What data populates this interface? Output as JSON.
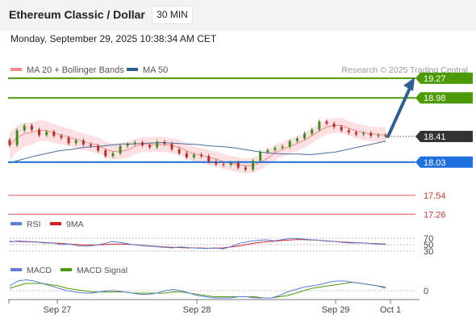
{
  "header": {
    "title": "Ethereum Classic / Dollar",
    "timeframe": "30 MIN",
    "datetime": "Monday, September 29, 2025 10:38:34 AM CET"
  },
  "chart_data": [
    {
      "type": "candlestick",
      "title": "Ethereum Classic / Dollar",
      "legend": [
        {
          "name": "MA 20 + Bollinger Bands",
          "color": "#f28c8c"
        },
        {
          "name": "MA 50",
          "color": "#2f5f96"
        }
      ],
      "credit": "Research © 2025 Trading Central",
      "x_tick_labels": [
        "Sep 27",
        "Sep 28",
        "Sep 29",
        "Oct 1"
      ],
      "ylim": [
        17.15,
        19.42
      ],
      "price_levels": [
        {
          "value": 19.27,
          "label": "19.27",
          "kind": "resistance",
          "color": "#4c9a06"
        },
        {
          "value": 18.98,
          "label": "18.98",
          "kind": "resistance",
          "color": "#4c9a06"
        },
        {
          "value": 18.41,
          "label": "18.41",
          "kind": "last",
          "color": "#333333"
        },
        {
          "value": 18.03,
          "label": "18.03",
          "kind": "pivot",
          "color": "#1e6fe0"
        },
        {
          "value": 17.54,
          "label": "17.54",
          "kind": "support",
          "color": "#e05050"
        },
        {
          "value": 17.26,
          "label": "17.26",
          "kind": "support",
          "color": "#e05050"
        }
      ],
      "close": [
        18.28,
        18.5,
        18.57,
        18.51,
        18.43,
        18.48,
        18.42,
        18.39,
        18.31,
        18.35,
        18.29,
        18.27,
        18.2,
        18.12,
        18.16,
        18.27,
        18.3,
        18.32,
        18.28,
        18.25,
        18.33,
        18.3,
        18.22,
        18.16,
        18.1,
        18.14,
        18.12,
        18.04,
        18.0,
        17.99,
        18.02,
        17.95,
        17.92,
        18.05,
        18.18,
        18.21,
        18.24,
        18.26,
        18.34,
        18.38,
        18.45,
        18.51,
        18.63,
        18.6,
        18.55,
        18.5,
        18.47,
        18.44,
        18.46,
        18.42,
        18.43,
        18.41
      ],
      "ma50": [
        18.02,
        18.07,
        18.12,
        18.16,
        18.2,
        18.22,
        18.25,
        18.26,
        18.28,
        18.3,
        18.3,
        18.31,
        18.32,
        18.31,
        18.3,
        18.29,
        18.27,
        18.26,
        18.24,
        18.21,
        18.18,
        18.16,
        18.15,
        18.15,
        18.14,
        18.16,
        18.18,
        18.22,
        18.26,
        18.3,
        18.34
      ],
      "forecast_arrow": {
        "from": 18.41,
        "to": 19.27
      }
    },
    {
      "type": "line",
      "name": "RSI",
      "legend": [
        {
          "name": "RSI",
          "color": "#5b7fd6"
        },
        {
          "name": "9MA",
          "color": "#d62020"
        }
      ],
      "levels": [
        70,
        50,
        30
      ],
      "ylim": [
        20,
        80
      ],
      "rsi": [
        58,
        62,
        60,
        59,
        55,
        56,
        50,
        52,
        47,
        45,
        48,
        53,
        60,
        57,
        52,
        48,
        46,
        44,
        42,
        40,
        43,
        41,
        39,
        38,
        40,
        37,
        45,
        55,
        60,
        63,
        65,
        62,
        66,
        70,
        68,
        66,
        64,
        61,
        60,
        57,
        55,
        56,
        54,
        52,
        51
      ],
      "ma9": [
        60,
        60,
        59,
        58,
        57,
        55,
        54,
        52,
        50,
        49,
        49,
        50,
        52,
        52,
        51,
        49,
        47,
        45,
        43,
        42,
        41,
        40,
        40,
        39,
        39,
        40,
        43,
        47,
        52,
        56,
        59,
        61,
        63,
        65,
        66,
        65,
        64,
        62,
        60,
        58,
        57,
        56,
        54,
        53,
        52
      ]
    },
    {
      "type": "line",
      "name": "MACD",
      "legend": [
        {
          "name": "MACD",
          "color": "#5b7fd6"
        },
        {
          "name": "MACD Signal",
          "color": "#4c9a06"
        }
      ],
      "zero_label": "0",
      "ylim": [
        -0.14,
        0.14
      ],
      "macd": [
        0.04,
        0.08,
        0.09,
        0.08,
        0.06,
        0.04,
        0.02,
        0.0,
        -0.01,
        -0.02,
        -0.02,
        -0.01,
        0.0,
        0.0,
        -0.01,
        -0.02,
        -0.03,
        -0.03,
        -0.02,
        0.0,
        0.01,
        0.0,
        -0.02,
        -0.04,
        -0.05,
        -0.06,
        -0.06,
        -0.06,
        -0.05,
        -0.05,
        -0.06,
        -0.06,
        -0.06,
        -0.04,
        -0.01,
        0.01,
        0.03,
        0.04,
        0.05,
        0.07,
        0.08,
        0.08,
        0.07,
        0.06,
        0.05,
        0.04,
        0.02
      ],
      "signal": [
        0.02,
        0.04,
        0.06,
        0.06,
        0.06,
        0.05,
        0.04,
        0.02,
        0.01,
        0.0,
        -0.01,
        -0.01,
        -0.01,
        -0.01,
        -0.01,
        -0.02,
        -0.02,
        -0.02,
        -0.02,
        -0.02,
        -0.01,
        -0.01,
        -0.02,
        -0.03,
        -0.04,
        -0.05,
        -0.05,
        -0.05,
        -0.05,
        -0.05,
        -0.05,
        -0.06,
        -0.06,
        -0.05,
        -0.04,
        -0.02,
        0.0,
        0.02,
        0.03,
        0.04,
        0.05,
        0.06,
        0.07,
        0.06,
        0.05,
        0.04,
        0.03
      ]
    }
  ]
}
